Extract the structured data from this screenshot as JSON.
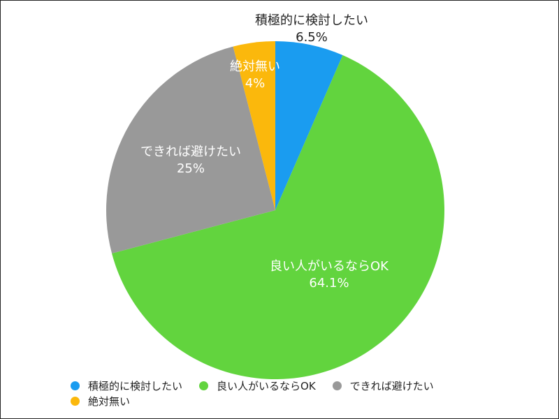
{
  "chart_data": {
    "type": "pie",
    "start_angle_deg": 0,
    "direction": "clockwise",
    "legend_position": "bottom",
    "slices": [
      {
        "label": "積極的に検討したい",
        "value": 6.5,
        "value_label": "6.5%",
        "color": "#1a9cf0",
        "label_style": "dark-outside"
      },
      {
        "label": "良い人がいるならOK",
        "value": 64.1,
        "value_label": "64.1%",
        "color": "#62d43e",
        "label_style": "light"
      },
      {
        "label": "できれば避けたい",
        "value": 25,
        "value_label": "25%",
        "color": "#999999",
        "label_style": "light"
      },
      {
        "label": "絶対無い",
        "value": 4,
        "value_label": "4%",
        "color": "#fbb80c",
        "label_style": "light"
      }
    ]
  }
}
